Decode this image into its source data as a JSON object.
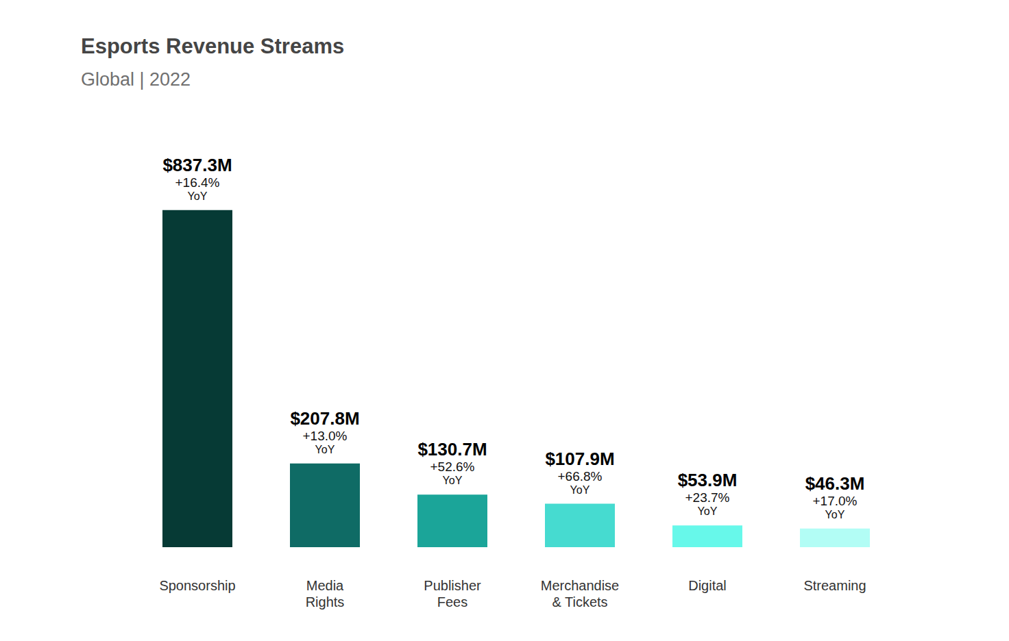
{
  "chart_data": {
    "type": "bar",
    "title": "Esports Revenue Streams",
    "subtitle": "Global | 2022",
    "categories": [
      "Sponsorship",
      "Media Rights",
      "Publisher Fees",
      "Merchandise & Tickets",
      "Digital",
      "Streaming"
    ],
    "values": [
      837.3,
      207.8,
      130.7,
      107.9,
      53.9,
      46.3
    ],
    "value_labels": [
      "$837.3M",
      "$207.8M",
      "$130.7M",
      "$107.9M",
      "$53.9M",
      "$46.3M"
    ],
    "yoy_growth": [
      16.4,
      13.0,
      52.6,
      66.8,
      23.7,
      17.0
    ],
    "yoy_growth_labels": [
      "+16.4%",
      "+13.0%",
      "+52.6%",
      "+66.8%",
      "+23.7%",
      "+17.0%"
    ],
    "yoy_growth_caption": "YoY",
    "colors": [
      "#063a35",
      "#0f6b65",
      "#1ba599",
      "#46dbd0",
      "#67f8ea",
      "#b2fdf5"
    ],
    "ylim": [
      0,
      1000
    ],
    "data_labels": true,
    "tick_labels": "x",
    "grid": false
  }
}
